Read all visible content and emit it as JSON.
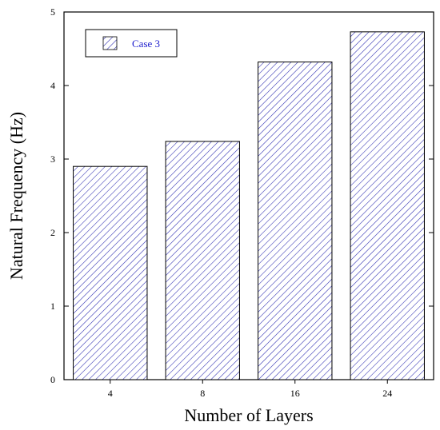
{
  "chart_data": {
    "type": "bar",
    "categories": [
      "4",
      "8",
      "16",
      "24"
    ],
    "series": [
      {
        "name": "Case 3",
        "values": [
          2.9,
          3.24,
          4.32,
          4.73
        ]
      }
    ],
    "xlabel": "Number of Layers",
    "ylabel": "Natural Frequency (Hz)",
    "ylim": [
      0,
      5
    ],
    "yticks": [
      "0",
      "1",
      "2",
      "3",
      "4",
      "5"
    ],
    "grid": false,
    "legend_position": "top-left",
    "bar_fill": "hatched diagonal",
    "colors": {
      "hatch": "#2a2ab0",
      "legend_text": "#1a1acc",
      "axis": "#000000",
      "bar_outline": "#000000"
    }
  }
}
